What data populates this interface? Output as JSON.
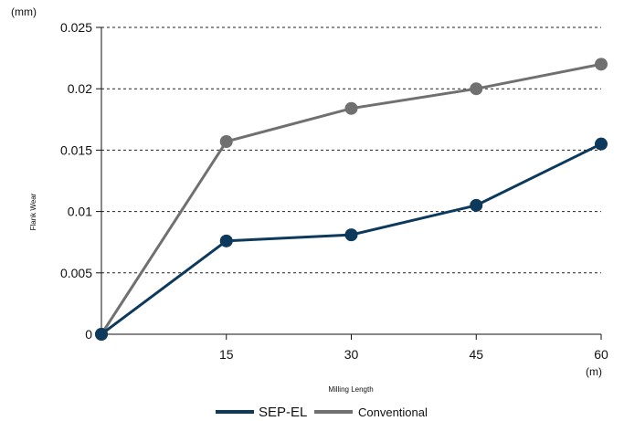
{
  "chart_data": {
    "type": "line",
    "title": "",
    "xlabel": "Milling Length",
    "ylabel": "Flank Wear",
    "y_unit": "(mm)",
    "x_unit": "(m)",
    "x": [
      0,
      15,
      30,
      45,
      60
    ],
    "x_ticks": [
      15,
      30,
      45,
      60
    ],
    "y_ticks": [
      0,
      0.005,
      0.01,
      0.015,
      0.02,
      0.025
    ],
    "y_tick_labels": [
      "0",
      "0.005",
      "0.01",
      "0.015",
      "0.02",
      "0.025"
    ],
    "xlim": [
      0,
      60
    ],
    "ylim": [
      0,
      0.025
    ],
    "grid": "horizontal-dashed",
    "legend": "bottom-center",
    "series": [
      {
        "name": "SEP-EL",
        "color": "#0d3a5c",
        "values": [
          0,
          0.0076,
          0.0081,
          0.0105,
          0.0155
        ]
      },
      {
        "name": "Conventional",
        "color": "#707070",
        "values": [
          0,
          0.0157,
          0.0184,
          0.02,
          0.022
        ]
      }
    ]
  }
}
